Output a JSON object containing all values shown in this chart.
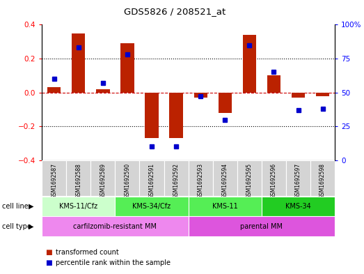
{
  "title": "GDS5826 / 208521_at",
  "samples": [
    "GSM1692587",
    "GSM1692588",
    "GSM1692589",
    "GSM1692590",
    "GSM1692591",
    "GSM1692592",
    "GSM1692593",
    "GSM1692594",
    "GSM1692595",
    "GSM1692596",
    "GSM1692597",
    "GSM1692598"
  ],
  "transformed_count": [
    0.03,
    0.35,
    0.02,
    0.29,
    -0.27,
    -0.27,
    -0.03,
    -0.12,
    0.34,
    0.1,
    -0.03,
    -0.02
  ],
  "percentile_rank": [
    60,
    83,
    57,
    78,
    10,
    10,
    47,
    30,
    85,
    65,
    37,
    38
  ],
  "ylim_left": [
    -0.4,
    0.4
  ],
  "ylim_right": [
    0,
    100
  ],
  "yticks_left": [
    -0.4,
    -0.2,
    0.0,
    0.2,
    0.4
  ],
  "yticks_right": [
    0,
    25,
    50,
    75,
    100
  ],
  "bar_color": "#bb2200",
  "dot_color": "#0000cc",
  "cell_line_groups": [
    {
      "label": "KMS-11/Cfz",
      "start": 0,
      "end": 3,
      "color": "#ccffcc"
    },
    {
      "label": "KMS-34/Cfz",
      "start": 3,
      "end": 6,
      "color": "#55ee55"
    },
    {
      "label": "KMS-11",
      "start": 6,
      "end": 9,
      "color": "#55ee55"
    },
    {
      "label": "KMS-34",
      "start": 9,
      "end": 12,
      "color": "#22cc22"
    }
  ],
  "cell_type_groups": [
    {
      "label": "carfilzomib-resistant MM",
      "start": 0,
      "end": 6,
      "color": "#ee88ee"
    },
    {
      "label": "parental MM",
      "start": 6,
      "end": 12,
      "color": "#dd55dd"
    }
  ],
  "legend_items": [
    {
      "label": "transformed count",
      "color": "#bb2200"
    },
    {
      "label": "percentile rank within the sample",
      "color": "#0000cc"
    }
  ],
  "dotted_line_color": "black",
  "zero_line_color": "#cc0000",
  "background_outer": "white"
}
